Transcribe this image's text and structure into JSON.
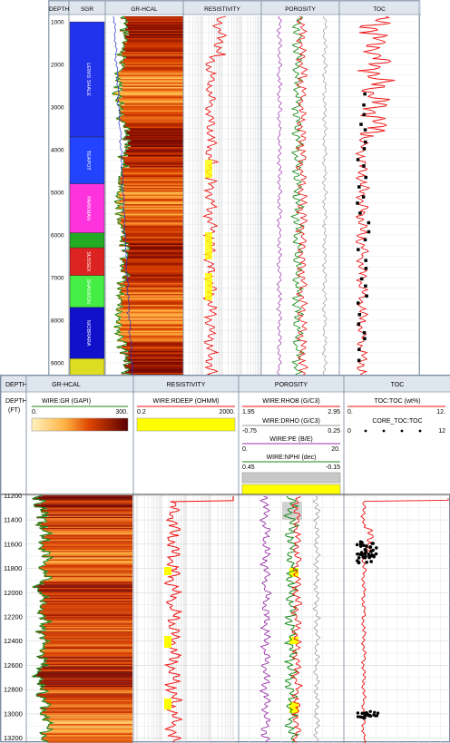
{
  "top_panel": {
    "headers": [
      "DEPTH",
      "SGR",
      "GR-HCAL",
      "RESISTIVITY",
      "POROSITY",
      "TOC"
    ],
    "depth_ticks": [
      "1000",
      "2000",
      "3000",
      "4000",
      "5000",
      "6000",
      "7000",
      "8000",
      "9000"
    ],
    "formations": [
      {
        "name": "LEWIS SHALE",
        "top": 1000,
        "base": 3700,
        "color": "#2233ee"
      },
      {
        "name": "TEAPOT",
        "top": 3700,
        "base": 4800,
        "color": "#2244ff"
      },
      {
        "name": "PARKMAN",
        "top": 4800,
        "base": 5950,
        "color": "#ff33dd"
      },
      {
        "name": "",
        "top": 5950,
        "base": 6300,
        "color": "#22aa22"
      },
      {
        "name": "SUSSEX",
        "top": 6300,
        "base": 6950,
        "color": "#dd2222"
      },
      {
        "name": "SHANNON",
        "top": 6950,
        "base": 7700,
        "color": "#44ee44"
      },
      {
        "name": "NIOBRARA",
        "top": 7700,
        "base": 8900,
        "color": "#1111cc"
      },
      {
        "name": "",
        "top": 8900,
        "base": 9300,
        "color": "#dddd22"
      }
    ]
  },
  "bottom_panel": {
    "headers": {
      "depth": "DEPTH",
      "grhcal": "GR-HCAL",
      "resistivity": "RESISTIVITY",
      "porosity": "POROSITY",
      "toc": "TOC"
    },
    "depth_label": "DEPTH",
    "depth_unit": "(FT)",
    "gr": {
      "curve": "WIRE:GR (GAPI)",
      "min": "0.",
      "max": "300."
    },
    "res": {
      "curve": "WIRE:RDEEP (OHMM)",
      "min": "0.2",
      "max": "2000."
    },
    "rhob": {
      "curve": "WIRE:RHOB (G/C3)",
      "min": "1.95",
      "max": "2.95"
    },
    "drho": {
      "curve": "WIRE:DRHO (G/C3)",
      "min": "-0.75",
      "max": "0.25"
    },
    "pe": {
      "curve": "WIRE:PE (B/E)",
      "min": "0.",
      "max": "20."
    },
    "nphi": {
      "curve": "WIRE:NPHI (dec)",
      "min": "0.45",
      "max": "-0.15"
    },
    "toc_curve": {
      "curve": "TOC:TOC (wt%)",
      "min": "0.",
      "max": "12."
    },
    "core_toc": {
      "curve": "CORE_TOC:TOC",
      "min": "0",
      "max": "12"
    },
    "depth_ticks": [
      "11200",
      "11400",
      "11600",
      "11800",
      "12000",
      "12200",
      "12400",
      "12600",
      "12800",
      "13000",
      "13200"
    ]
  },
  "colors": {
    "gr_fill_low": "#ffe9a0",
    "gr_fill_high": "#6a0000",
    "gr_line": "#1a8a1a",
    "res_line": "#ee1111",
    "res_fill": "#ffff00",
    "rhob_line": "#ee1111",
    "pe_line": "#9933aa",
    "nphi_line": "#1a8a1a",
    "drho_line": "#999999",
    "toc_line": "#ee1111",
    "core_toc_dot": "#000000"
  }
}
